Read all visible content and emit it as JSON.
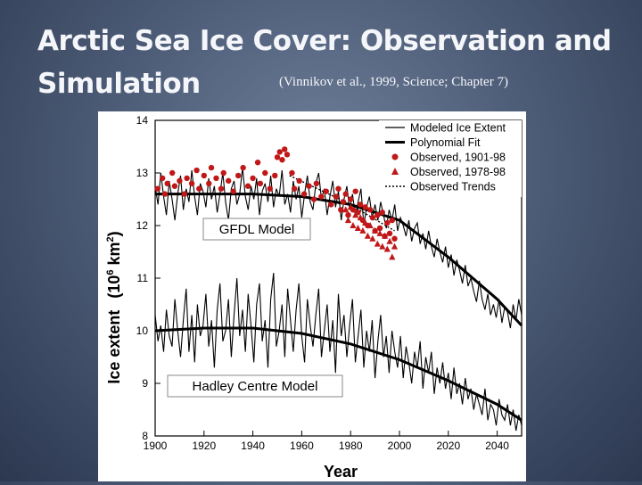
{
  "slide": {
    "title_line1": "Arctic Sea Ice Cover: Observation and",
    "title_line2": "Simulation",
    "citation": "(Vinnikov et al., 1999, Science; Chapter 7)"
  },
  "chart_data": {
    "type": "line",
    "xlabel": "Year",
    "ylabel_main": "Ice extent",
    "ylabel_unit_prefix": "(10",
    "ylabel_unit_exp": "6",
    "ylabel_unit_suffix": " km",
    "ylabel_unit_sq": "2",
    "ylabel_unit_close": ")",
    "xlim": [
      1900,
      2050
    ],
    "ylim": [
      8,
      14
    ],
    "xticks": [
      1900,
      1920,
      1940,
      1960,
      1980,
      2000,
      2020,
      2040
    ],
    "yticks": [
      8,
      9,
      10,
      11,
      12,
      13,
      14
    ],
    "legend_position": "top-right",
    "legend": [
      {
        "label": "Modeled Ice Extent",
        "style": "thin-line"
      },
      {
        "label": "Polynomial Fit",
        "style": "thick-line"
      },
      {
        "label": "Observed, 1901-98",
        "style": "circle",
        "color": "#c01818"
      },
      {
        "label": "Observed, 1978-98",
        "style": "triangle",
        "color": "#c01818"
      },
      {
        "label": "Observed Trends",
        "style": "dotted-line"
      }
    ],
    "panels": [
      {
        "name": "GFDL Model",
        "fit": [
          [
            1900,
            12.6
          ],
          [
            1940,
            12.6
          ],
          [
            1960,
            12.55
          ],
          [
            1980,
            12.4
          ],
          [
            2000,
            12.1
          ],
          [
            2020,
            11.4
          ],
          [
            2040,
            10.6
          ],
          [
            2050,
            10.1
          ]
        ]
      },
      {
        "name": "Hadley Centre Model",
        "fit": [
          [
            1900,
            10.0
          ],
          [
            1920,
            10.05
          ],
          [
            1940,
            10.05
          ],
          [
            1960,
            9.95
          ],
          [
            1980,
            9.75
          ],
          [
            2000,
            9.45
          ],
          [
            2020,
            9.05
          ],
          [
            2040,
            8.6
          ],
          [
            2050,
            8.3
          ]
        ]
      }
    ],
    "observed_trends": [
      [
        1955,
        12.95
      ],
      [
        1978,
        12.45
      ],
      [
        1998,
        11.9
      ]
    ],
    "modeled_gfdl_noise": [
      12.75,
      12.4,
      13.0,
      12.55,
      12.2,
      12.85,
      12.5,
      12.1,
      12.6,
      12.95,
      12.3,
      12.7,
      12.45,
      13.05,
      12.55,
      12.2,
      12.8,
      12.65,
      12.35,
      12.9,
      12.5,
      12.75,
      12.25,
      12.6,
      13.0,
      12.45,
      12.1,
      12.7,
      12.85,
      12.4,
      12.6,
      13.1,
      12.55,
      12.3,
      12.75,
      12.5,
      12.9,
      12.2,
      12.65,
      12.8,
      12.45,
      12.95,
      12.35,
      12.7,
      12.55,
      13.05,
      12.4,
      12.6,
      12.25,
      12.85,
      12.5,
      12.75,
      12.15,
      12.6,
      12.95,
      12.45,
      12.3,
      12.8,
      13.0,
      12.5,
      12.7,
      12.2,
      12.55,
      12.85,
      12.35,
      12.65,
      12.1,
      12.5,
      12.75,
      12.3,
      12.6,
      12.2,
      12.45,
      12.7,
      12.0,
      12.35,
      12.55,
      12.15,
      12.4,
      12.1,
      12.45,
      12.2,
      11.95,
      12.3,
      12.1,
      12.4,
      11.9,
      12.15,
      12.0,
      11.8,
      12.1,
      11.7,
      11.95,
      12.05,
      11.65,
      11.85,
      11.55,
      11.9,
      11.6,
      11.4,
      11.75,
      11.5,
      11.3,
      11.6,
      11.2,
      11.45,
      11.05,
      11.35,
      11.15,
      10.9,
      11.25,
      10.85,
      11.0,
      10.75,
      10.55,
      10.95,
      10.6,
      10.4,
      10.7,
      10.3,
      10.5,
      10.25,
      10.6,
      10.15,
      10.45,
      10.35,
      10.05,
      10.5,
      10.2,
      10.6,
      10.3
    ],
    "modeled_hadley_noise": [
      10.3,
      9.8,
      10.1,
      9.6,
      10.4,
      9.9,
      9.7,
      10.6,
      10.0,
      9.5,
      10.2,
      10.8,
      9.6,
      10.3,
      9.4,
      10.5,
      9.9,
      10.1,
      10.7,
      9.7,
      10.2,
      9.3,
      10.4,
      10.9,
      9.8,
      10.0,
      10.6,
      9.5,
      10.3,
      11.0,
      9.9,
      10.4,
      9.6,
      10.7,
      10.1,
      9.4,
      10.5,
      10.9,
      9.8,
      10.2,
      9.3,
      10.6,
      11.1,
      9.7,
      10.0,
      10.5,
      9.5,
      10.8,
      10.2,
      9.6,
      10.4,
      10.9,
      9.9,
      9.4,
      10.6,
      10.1,
      9.7,
      10.3,
      10.8,
      9.5,
      10.0,
      10.5,
      9.6,
      10.2,
      9.2,
      10.7,
      9.9,
      10.3,
      9.5,
      10.1,
      10.6,
      9.4,
      9.9,
      10.4,
      9.3,
      10.0,
      9.6,
      10.2,
      9.1,
      9.8,
      10.3,
      9.5,
      9.9,
      9.2,
      10.0,
      9.6,
      9.3,
      9.9,
      9.1,
      9.7,
      9.4,
      9.0,
      9.6,
      9.3,
      9.8,
      8.9,
      9.5,
      9.2,
      9.6,
      8.8,
      9.3,
      9.0,
      9.4,
      8.9,
      9.2,
      8.7,
      9.3,
      8.8,
      9.0,
      8.6,
      9.1,
      8.7,
      8.9,
      8.5,
      8.8,
      8.6,
      8.4,
      8.9,
      8.3,
      8.6,
      8.5,
      8.2,
      8.7,
      8.4,
      8.3,
      8.6,
      8.2,
      8.5,
      8.1,
      8.4,
      8.2
    ],
    "observed_1901_98": [
      [
        1901,
        12.7
      ],
      [
        1903,
        12.9
      ],
      [
        1904,
        12.6
      ],
      [
        1905,
        12.8
      ],
      [
        1907,
        13.0
      ],
      [
        1908,
        12.75
      ],
      [
        1910,
        12.85
      ],
      [
        1912,
        12.6
      ],
      [
        1913,
        12.9
      ],
      [
        1915,
        12.8
      ],
      [
        1917,
        13.05
      ],
      [
        1918,
        12.7
      ],
      [
        1920,
        12.95
      ],
      [
        1922,
        12.8
      ],
      [
        1923,
        13.1
      ],
      [
        1925,
        12.9
      ],
      [
        1927,
        12.7
      ],
      [
        1928,
        13.0
      ],
      [
        1930,
        12.85
      ],
      [
        1932,
        12.65
      ],
      [
        1934,
        12.95
      ],
      [
        1936,
        13.1
      ],
      [
        1938,
        12.75
      ],
      [
        1940,
        12.9
      ],
      [
        1942,
        13.2
      ],
      [
        1943,
        12.8
      ],
      [
        1945,
        13.0
      ],
      [
        1947,
        12.7
      ],
      [
        1949,
        12.95
      ],
      [
        1950,
        13.3
      ],
      [
        1951,
        13.4
      ],
      [
        1952,
        13.25
      ],
      [
        1953,
        13.45
      ],
      [
        1954,
        13.35
      ],
      [
        1956,
        13.0
      ],
      [
        1957,
        12.7
      ],
      [
        1959,
        12.85
      ],
      [
        1961,
        12.6
      ],
      [
        1963,
        12.75
      ],
      [
        1965,
        12.5
      ],
      [
        1966,
        12.8
      ],
      [
        1968,
        12.55
      ],
      [
        1970,
        12.65
      ],
      [
        1972,
        12.4
      ],
      [
        1974,
        12.55
      ],
      [
        1975,
        12.7
      ],
      [
        1976,
        12.3
      ],
      [
        1977,
        12.45
      ],
      [
        1978,
        12.6
      ],
      [
        1979,
        12.2
      ],
      [
        1980,
        12.5
      ],
      [
        1981,
        12.3
      ],
      [
        1982,
        12.65
      ],
      [
        1983,
        12.25
      ],
      [
        1984,
        12.4
      ],
      [
        1985,
        12.1
      ],
      [
        1986,
        12.35
      ],
      [
        1987,
        12.0
      ],
      [
        1988,
        12.3
      ],
      [
        1989,
        12.15
      ],
      [
        1990,
        11.9
      ],
      [
        1991,
        12.2
      ],
      [
        1992,
        11.95
      ],
      [
        1993,
        12.25
      ],
      [
        1994,
        11.8
      ],
      [
        1995,
        12.05
      ],
      [
        1996,
        11.85
      ],
      [
        1997,
        12.1
      ],
      [
        1998,
        11.75
      ]
    ],
    "observed_1978_98": [
      [
        1978,
        12.3
      ],
      [
        1979,
        12.1
      ],
      [
        1980,
        12.35
      ],
      [
        1981,
        12.0
      ],
      [
        1982,
        12.2
      ],
      [
        1983,
        11.95
      ],
      [
        1984,
        12.15
      ],
      [
        1985,
        11.9
      ],
      [
        1986,
        12.05
      ],
      [
        1987,
        11.8
      ],
      [
        1988,
        12.0
      ],
      [
        1989,
        11.75
      ],
      [
        1990,
        11.9
      ],
      [
        1991,
        11.65
      ],
      [
        1992,
        11.85
      ],
      [
        1993,
        11.6
      ],
      [
        1994,
        11.8
      ],
      [
        1995,
        11.55
      ],
      [
        1996,
        11.7
      ],
      [
        1997,
        11.4
      ],
      [
        1998,
        11.6
      ]
    ]
  }
}
